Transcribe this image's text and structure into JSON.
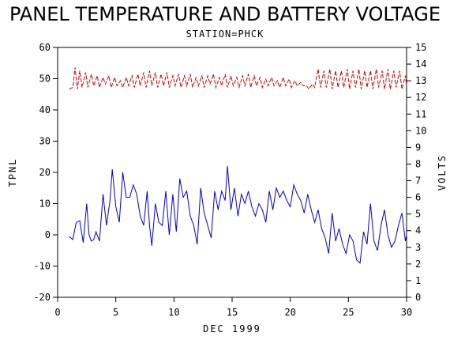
{
  "chart_data": {
    "type": "line",
    "title": "PANEL TEMPERATURE AND BATTERY VOLTAGE",
    "subtitle": "STATION=PHCK",
    "xlabel": "DEC 1999",
    "ylabel_left": "TPNL",
    "ylabel_right": "VOLTS",
    "xlim": [
      0,
      30
    ],
    "ylim_left": [
      -20,
      60
    ],
    "ylim_right": [
      0,
      15
    ],
    "x_ticks": [
      0,
      5,
      10,
      15,
      20,
      25,
      30
    ],
    "y_left_ticks": [
      -20,
      -10,
      0,
      10,
      20,
      30,
      40,
      50,
      60
    ],
    "y_right_ticks": [
      0,
      1,
      2,
      3,
      4,
      5,
      6,
      7,
      8,
      9,
      10,
      11,
      12,
      13,
      14,
      15
    ],
    "grid": false,
    "series": [
      {
        "name": "TPNL",
        "axis": "left",
        "color": "#0000cc",
        "style": "solid",
        "points": [
          [
            1.0,
            -0.5
          ],
          [
            1.3,
            -1.5
          ],
          [
            1.6,
            4
          ],
          [
            1.9,
            4.5
          ],
          [
            2.2,
            -2.5
          ],
          [
            2.5,
            10
          ],
          [
            2.7,
            0
          ],
          [
            2.9,
            -2
          ],
          [
            3.1,
            -1.5
          ],
          [
            3.3,
            1
          ],
          [
            3.6,
            -2
          ],
          [
            3.9,
            13
          ],
          [
            4.2,
            3
          ],
          [
            4.5,
            11
          ],
          [
            4.7,
            21
          ],
          [
            5.0,
            9
          ],
          [
            5.3,
            4
          ],
          [
            5.6,
            20
          ],
          [
            5.9,
            12
          ],
          [
            6.2,
            12
          ],
          [
            6.5,
            16
          ],
          [
            6.8,
            13
          ],
          [
            7.1,
            6
          ],
          [
            7.4,
            3
          ],
          [
            7.7,
            14
          ],
          [
            7.9,
            3
          ],
          [
            8.1,
            -3.5
          ],
          [
            8.4,
            10
          ],
          [
            8.7,
            4
          ],
          [
            9.0,
            3
          ],
          [
            9.3,
            14
          ],
          [
            9.6,
            0
          ],
          [
            9.9,
            13
          ],
          [
            10.2,
            1
          ],
          [
            10.5,
            18
          ],
          [
            10.8,
            12
          ],
          [
            11.1,
            14
          ],
          [
            11.4,
            6
          ],
          [
            11.7,
            3
          ],
          [
            12.0,
            -3
          ],
          [
            12.3,
            15
          ],
          [
            12.6,
            7
          ],
          [
            12.9,
            3
          ],
          [
            13.2,
            -1
          ],
          [
            13.5,
            14
          ],
          [
            13.8,
            8
          ],
          [
            14.1,
            14
          ],
          [
            14.4,
            11
          ],
          [
            14.6,
            22
          ],
          [
            14.9,
            8
          ],
          [
            15.2,
            15
          ],
          [
            15.5,
            6
          ],
          [
            15.8,
            13
          ],
          [
            16.1,
            10
          ],
          [
            16.4,
            14
          ],
          [
            16.7,
            9
          ],
          [
            17.0,
            6
          ],
          [
            17.3,
            10
          ],
          [
            17.6,
            8
          ],
          [
            17.9,
            4
          ],
          [
            18.2,
            14
          ],
          [
            18.5,
            8
          ],
          [
            18.8,
            15
          ],
          [
            19.1,
            12
          ],
          [
            19.4,
            14
          ],
          [
            19.7,
            11
          ],
          [
            20.0,
            9
          ],
          [
            20.3,
            16
          ],
          [
            20.6,
            13
          ],
          [
            20.9,
            11
          ],
          [
            21.2,
            7
          ],
          [
            21.5,
            13
          ],
          [
            21.8,
            8
          ],
          [
            22.1,
            4
          ],
          [
            22.4,
            8
          ],
          [
            22.7,
            2
          ],
          [
            23.0,
            -1
          ],
          [
            23.3,
            -6
          ],
          [
            23.6,
            7
          ],
          [
            23.9,
            -2
          ],
          [
            24.2,
            2
          ],
          [
            24.5,
            -3
          ],
          [
            24.8,
            -6
          ],
          [
            25.1,
            0
          ],
          [
            25.4,
            -2
          ],
          [
            25.7,
            -8
          ],
          [
            26.0,
            -9
          ],
          [
            26.3,
            1
          ],
          [
            26.6,
            -3
          ],
          [
            26.9,
            10
          ],
          [
            27.2,
            -2
          ],
          [
            27.5,
            -5
          ],
          [
            27.8,
            3
          ],
          [
            28.1,
            8
          ],
          [
            28.4,
            0
          ],
          [
            28.7,
            -4
          ],
          [
            29.0,
            -2
          ],
          [
            29.3,
            3
          ],
          [
            29.6,
            7
          ],
          [
            29.9,
            -2
          ],
          [
            30.0,
            0
          ]
        ]
      },
      {
        "name": "VOLTS",
        "axis": "right",
        "color": "#cc0000",
        "style": "dashed",
        "points": [
          [
            1.0,
            12.5
          ],
          [
            1.3,
            12.6
          ],
          [
            1.5,
            13.8
          ],
          [
            1.7,
            12.5
          ],
          [
            1.9,
            13.6
          ],
          [
            2.1,
            12.6
          ],
          [
            2.4,
            13.5
          ],
          [
            2.6,
            12.6
          ],
          [
            2.9,
            13.4
          ],
          [
            3.1,
            12.7
          ],
          [
            3.4,
            13.3
          ],
          [
            3.6,
            12.6
          ],
          [
            3.9,
            13.2
          ],
          [
            4.1,
            12.8
          ],
          [
            4.4,
            13.3
          ],
          [
            4.6,
            12.6
          ],
          [
            4.9,
            13.2
          ],
          [
            5.1,
            12.7
          ],
          [
            5.4,
            13.0
          ],
          [
            5.6,
            12.6
          ],
          [
            5.9,
            13.2
          ],
          [
            6.1,
            12.7
          ],
          [
            6.4,
            13.3
          ],
          [
            6.6,
            12.6
          ],
          [
            6.9,
            13.4
          ],
          [
            7.1,
            12.7
          ],
          [
            7.4,
            13.5
          ],
          [
            7.6,
            12.6
          ],
          [
            7.9,
            13.6
          ],
          [
            8.1,
            12.7
          ],
          [
            8.4,
            13.5
          ],
          [
            8.6,
            12.6
          ],
          [
            8.9,
            13.4
          ],
          [
            9.1,
            12.7
          ],
          [
            9.4,
            13.5
          ],
          [
            9.6,
            12.6
          ],
          [
            9.9,
            13.3
          ],
          [
            10.1,
            12.7
          ],
          [
            10.4,
            13.4
          ],
          [
            10.6,
            12.6
          ],
          [
            10.9,
            13.3
          ],
          [
            11.1,
            12.7
          ],
          [
            11.4,
            13.4
          ],
          [
            11.6,
            12.6
          ],
          [
            11.9,
            13.2
          ],
          [
            12.1,
            12.7
          ],
          [
            12.4,
            13.3
          ],
          [
            12.6,
            12.6
          ],
          [
            12.9,
            13.3
          ],
          [
            13.1,
            12.8
          ],
          [
            13.4,
            13.4
          ],
          [
            13.6,
            12.6
          ],
          [
            13.9,
            13.2
          ],
          [
            14.1,
            12.7
          ],
          [
            14.4,
            13.4
          ],
          [
            14.6,
            12.6
          ],
          [
            14.9,
            13.3
          ],
          [
            15.1,
            12.7
          ],
          [
            15.4,
            13.2
          ],
          [
            15.6,
            12.6
          ],
          [
            15.9,
            13.3
          ],
          [
            16.1,
            12.7
          ],
          [
            16.4,
            13.4
          ],
          [
            16.6,
            12.6
          ],
          [
            16.9,
            13.3
          ],
          [
            17.1,
            12.7
          ],
          [
            17.4,
            13.2
          ],
          [
            17.6,
            12.6
          ],
          [
            17.9,
            13.1
          ],
          [
            18.1,
            12.7
          ],
          [
            18.4,
            13.2
          ],
          [
            18.6,
            12.7
          ],
          [
            18.9,
            13.0
          ],
          [
            19.1,
            12.6
          ],
          [
            19.4,
            13.2
          ],
          [
            19.6,
            12.7
          ],
          [
            19.9,
            13.1
          ],
          [
            20.1,
            12.6
          ],
          [
            20.4,
            13.0
          ],
          [
            20.6,
            12.7
          ],
          [
            20.9,
            12.9
          ],
          [
            21.1,
            12.7
          ],
          [
            21.4,
            12.7
          ],
          [
            21.6,
            12.5
          ],
          [
            21.9,
            12.8
          ],
          [
            22.1,
            12.6
          ],
          [
            22.4,
            13.7
          ],
          [
            22.6,
            12.6
          ],
          [
            22.9,
            13.6
          ],
          [
            23.1,
            12.6
          ],
          [
            23.4,
            13.7
          ],
          [
            23.6,
            12.5
          ],
          [
            23.9,
            13.6
          ],
          [
            24.1,
            12.6
          ],
          [
            24.4,
            13.6
          ],
          [
            24.6,
            12.6
          ],
          [
            24.9,
            13.7
          ],
          [
            25.1,
            12.5
          ],
          [
            25.4,
            13.6
          ],
          [
            25.6,
            12.6
          ],
          [
            25.9,
            13.7
          ],
          [
            26.1,
            12.5
          ],
          [
            26.4,
            13.6
          ],
          [
            26.6,
            12.6
          ],
          [
            26.9,
            13.6
          ],
          [
            27.1,
            12.5
          ],
          [
            27.4,
            13.7
          ],
          [
            27.6,
            12.6
          ],
          [
            27.9,
            13.6
          ],
          [
            28.1,
            12.5
          ],
          [
            28.4,
            13.7
          ],
          [
            28.6,
            12.5
          ],
          [
            28.9,
            13.6
          ],
          [
            29.1,
            12.6
          ],
          [
            29.4,
            13.6
          ],
          [
            29.6,
            12.5
          ],
          [
            29.9,
            13.3
          ],
          [
            30.0,
            12.7
          ]
        ]
      }
    ]
  }
}
